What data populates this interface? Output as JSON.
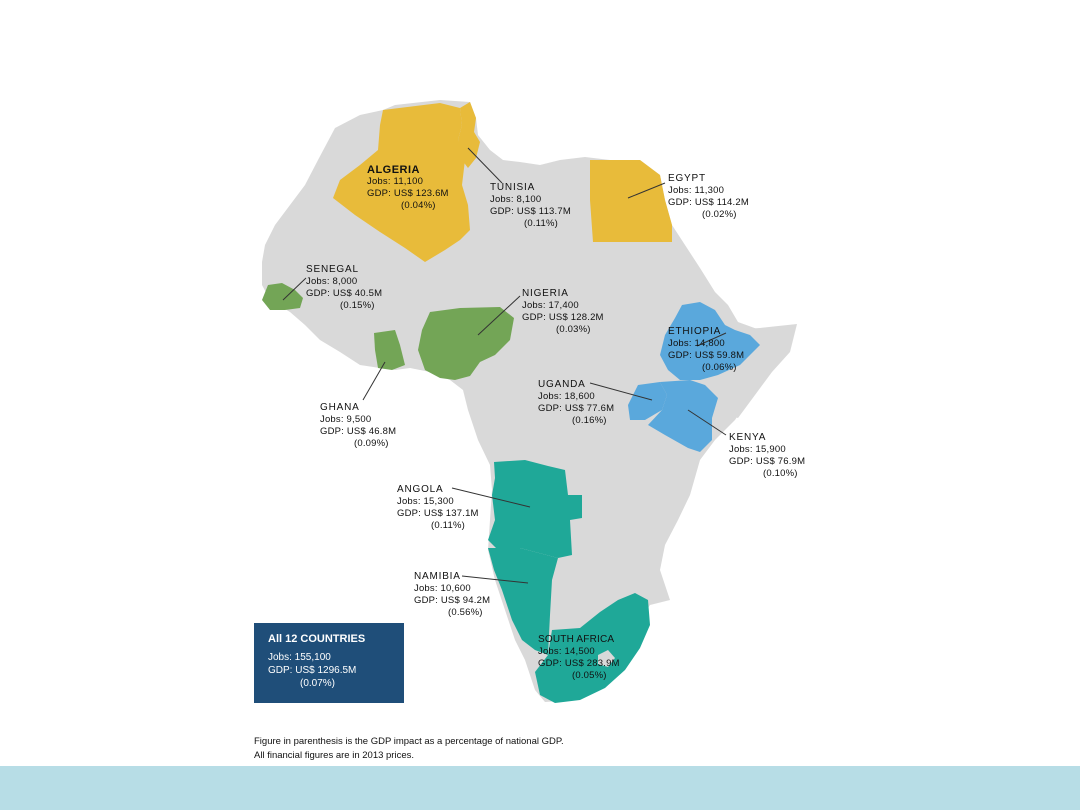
{
  "colors": {
    "continent": "#d9d9d9",
    "north": "#e8bb3a",
    "west": "#73a556",
    "east": "#5aa8dc",
    "south": "#1fa898",
    "total_box": "#1f4e79",
    "band": "#b7dde6"
  },
  "countries": [
    {
      "name": "ALGERIA",
      "jobs": "Jobs:  11,100",
      "gdp": "GDP:  US$ 123.6M",
      "pct": "(0.04%)"
    },
    {
      "name": "TUNISIA",
      "jobs": "Jobs:  8,100",
      "gdp": "GDP:  US$ 113.7M",
      "pct": "(0.11%)"
    },
    {
      "name": "EGYPT",
      "jobs": "Jobs:  11,300",
      "gdp": "GDP:  US$ 114.2M",
      "pct": "(0.02%)"
    },
    {
      "name": "SENEGAL",
      "jobs": "Jobs:  8,000",
      "gdp": "GDP:  US$ 40.5M",
      "pct": "(0.15%)"
    },
    {
      "name": "NIGERIA",
      "jobs": "Jobs:  17,400",
      "gdp": "GDP:  US$ 128.2M",
      "pct": "(0.03%)"
    },
    {
      "name": "ETHIOPIA",
      "jobs": "Jobs:  14,800",
      "gdp": "GDP:  US$ 59.8M",
      "pct": "(0.06%)"
    },
    {
      "name": "UGANDA",
      "jobs": "Jobs:  18,600",
      "gdp": "GDP:  US$ 77.6M",
      "pct": "(0.16%)"
    },
    {
      "name": "GHANA",
      "jobs": "Jobs:  9,500",
      "gdp": "GDP:  US$ 46.8M",
      "pct": "(0.09%)"
    },
    {
      "name": "KENYA",
      "jobs": "Jobs:  15,900",
      "gdp": "GDP:  US$ 76.9M",
      "pct": "(0.10%)"
    },
    {
      "name": "ANGOLA",
      "jobs": "Jobs:  15,300",
      "gdp": "GDP:  US$ 137.1M",
      "pct": "(0.11%)"
    },
    {
      "name": "NAMIBIA",
      "jobs": "Jobs:  10,600",
      "gdp": "GDP:  US$ 94.2M",
      "pct": "(0.56%)"
    },
    {
      "name": "SOUTH AFRICA",
      "jobs": "Jobs:  14,500",
      "gdp": "GDP:  US$ 283.9M",
      "pct": "(0.05%)"
    }
  ],
  "total": {
    "title": "All 12 COUNTRIES",
    "jobs": "Jobs:  155,100",
    "gdp": "GDP:  US$ 1296.5M",
    "pct": "(0.07%)"
  },
  "footnote": {
    "line1": "Figure in parenthesis is the GDP impact as a percentage of national GDP.",
    "line2": "All financial figures are in 2013 prices."
  }
}
